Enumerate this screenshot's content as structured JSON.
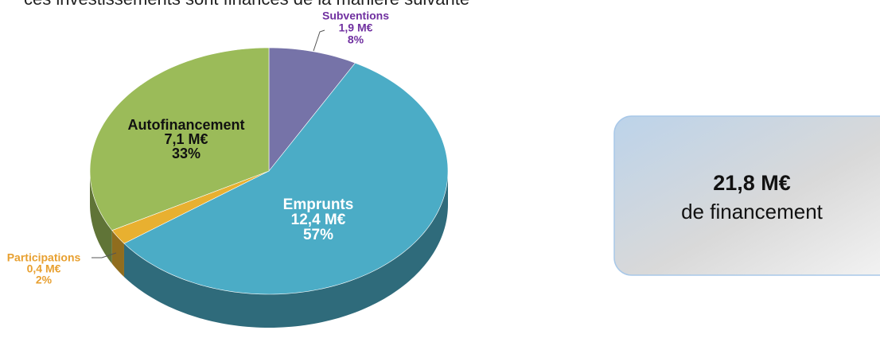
{
  "caption": "ces investissements sont financés de la manière suivante",
  "chart_data": {
    "type": "pie",
    "categories": [
      "Subventions",
      "Emprunts",
      "Participations",
      "Autofinancement"
    ],
    "values": [
      8,
      57,
      2,
      33
    ],
    "value_labels": [
      "8%",
      "57%",
      "2%",
      "33%"
    ],
    "amounts": [
      "1,9 M€",
      "12,4 M€",
      "0,4 M€",
      "7,1 M€"
    ],
    "colors": [
      "#7673a8",
      "#4bacc6",
      "#e8b030",
      "#9bbb59"
    ],
    "label_colors": [
      "#7030a0",
      "#ffffff",
      "#e8a030",
      "#111111"
    ]
  },
  "summary": {
    "total": "21,8 M€",
    "text": "de financement"
  }
}
